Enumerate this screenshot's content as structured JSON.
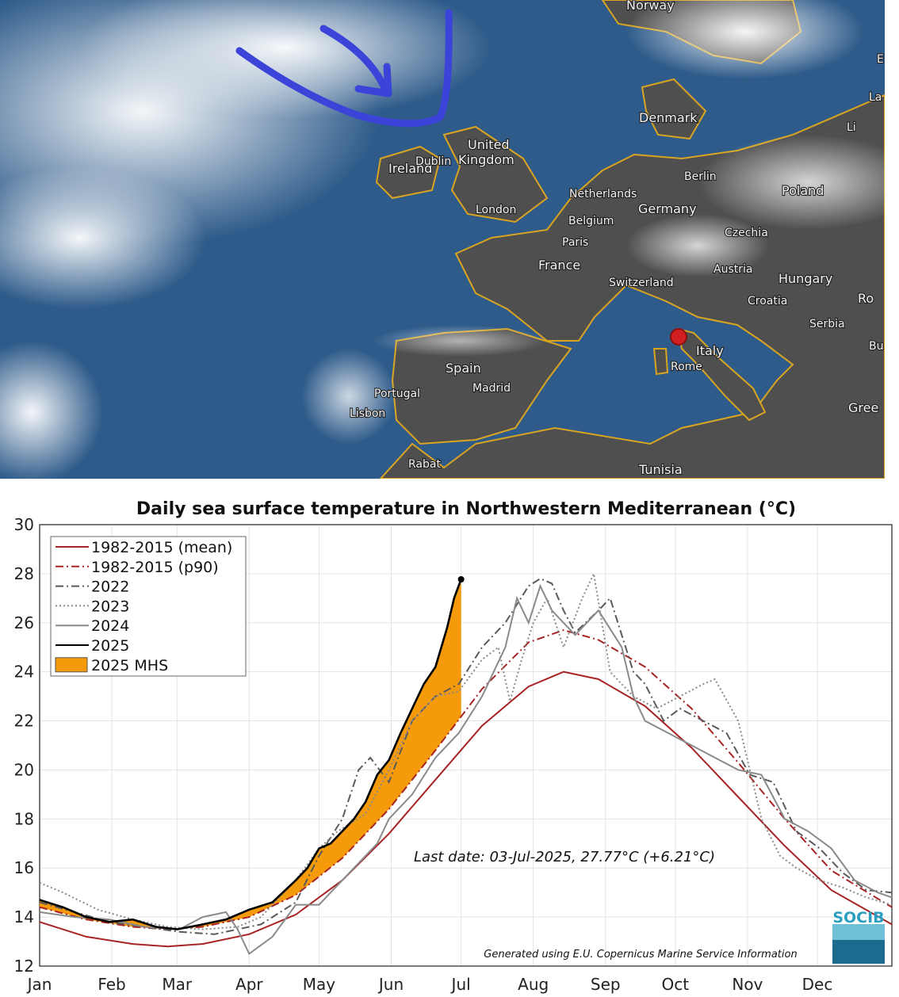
{
  "map": {
    "countries": [
      "Norway",
      "Denmark",
      "United Kingdom",
      "Ireland",
      "Netherlands",
      "Belgium",
      "Germany",
      "Poland",
      "Czechia",
      "France",
      "Switzerland",
      "Austria",
      "Hungary",
      "Croatia",
      "Serbia",
      "Italy",
      "Spain",
      "Portugal",
      "Tunisia",
      "Ro",
      "Bu",
      "Gree",
      "Li",
      "La",
      "E"
    ],
    "cities": [
      "Dublin",
      "London",
      "Paris",
      "Berlin",
      "Madrid",
      "Lisbon",
      "Rome",
      "Rabat"
    ],
    "colors": {
      "sea": "#2e5b8a",
      "land": "#4d4d4d",
      "borders": "#d9a521",
      "annotation_arrow": "#3c43d8",
      "marker": "#d11f1f"
    }
  },
  "chart_data": {
    "type": "line",
    "title": "Daily sea surface temperature in Northwestern Mediterranean (°C)",
    "xlabel": "",
    "ylabel": "",
    "ylim": [
      12,
      30
    ],
    "yticks": [
      12,
      14,
      16,
      18,
      20,
      22,
      24,
      26,
      28,
      30
    ],
    "xlim": [
      0,
      366
    ],
    "xticks": [
      {
        "label": "Jan",
        "day": 0
      },
      {
        "label": "Feb",
        "day": 31
      },
      {
        "label": "Mar",
        "day": 59
      },
      {
        "label": "Apr",
        "day": 90
      },
      {
        "label": "May",
        "day": 120
      },
      {
        "label": "Jun",
        "day": 151
      },
      {
        "label": "Jul",
        "day": 181
      },
      {
        "label": "Aug",
        "day": 212
      },
      {
        "label": "Sep",
        "day": 243
      },
      {
        "label": "Oct",
        "day": 273
      },
      {
        "label": "Nov",
        "day": 304
      },
      {
        "label": "Dec",
        "day": 334
      }
    ],
    "grid": true,
    "legend_position": "top-left",
    "series": [
      {
        "name": "1982-2015 (mean)",
        "color": "#a82323",
        "style": "solid",
        "x": [
          0,
          20,
          40,
          55,
          70,
          90,
          110,
          130,
          150,
          170,
          190,
          210,
          225,
          240,
          260,
          280,
          300,
          320,
          340,
          366
        ],
        "y": [
          13.8,
          13.2,
          12.9,
          12.8,
          12.9,
          13.3,
          14.1,
          15.5,
          17.4,
          19.6,
          21.8,
          23.4,
          24.0,
          23.7,
          22.6,
          20.9,
          18.9,
          16.9,
          15.1,
          13.7
        ]
      },
      {
        "name": "1982-2015 (p90)",
        "color": "#a82323",
        "style": "dashdot",
        "x": [
          0,
          20,
          40,
          55,
          70,
          90,
          110,
          130,
          150,
          170,
          190,
          210,
          225,
          240,
          260,
          280,
          300,
          320,
          340,
          366
        ],
        "y": [
          14.4,
          13.9,
          13.6,
          13.5,
          13.6,
          14.0,
          14.9,
          16.4,
          18.4,
          20.8,
          23.3,
          25.2,
          25.7,
          25.3,
          24.2,
          22.5,
          20.3,
          18.0,
          15.9,
          14.4
        ]
      },
      {
        "name": "2022",
        "color": "#5a5a5a",
        "style": "dashdot",
        "x": [
          0,
          15,
          30,
          45,
          60,
          75,
          85,
          95,
          110,
          120,
          130,
          137,
          142,
          150,
          160,
          170,
          180,
          190,
          200,
          210,
          215,
          220,
          225,
          230,
          240,
          245,
          250,
          255,
          260,
          268,
          275,
          285,
          295,
          305,
          315,
          325,
          335,
          345,
          355,
          366
        ],
        "y": [
          14.6,
          14.2,
          13.8,
          13.6,
          13.4,
          13.3,
          13.5,
          13.7,
          14.6,
          16.5,
          18.0,
          20.0,
          20.5,
          19.5,
          22.0,
          23.0,
          23.5,
          25.0,
          26.0,
          27.5,
          27.8,
          27.6,
          26.5,
          25.6,
          26.5,
          27.0,
          25.5,
          24.0,
          23.5,
          22.0,
          22.5,
          22.0,
          21.5,
          19.8,
          19.5,
          17.5,
          16.8,
          15.8,
          15.1,
          15.0
        ]
      },
      {
        "name": "2023",
        "color": "#8a8a8a",
        "style": "dotted",
        "x": [
          0,
          10,
          25,
          40,
          55,
          70,
          85,
          95,
          110,
          120,
          128,
          140,
          150,
          160,
          170,
          180,
          190,
          197,
          202,
          207,
          212,
          218,
          225,
          233,
          238,
          245,
          255,
          265,
          275,
          285,
          290,
          300,
          310,
          318,
          325,
          335,
          345,
          355,
          366
        ],
        "y": [
          15.4,
          15.0,
          14.3,
          13.9,
          13.6,
          13.5,
          13.6,
          14.0,
          15.5,
          16.8,
          17.5,
          18.2,
          20.0,
          22.0,
          23.0,
          23.2,
          24.5,
          25.0,
          22.8,
          24.5,
          26.0,
          27.0,
          25.0,
          27.0,
          28.0,
          24.0,
          23.0,
          22.5,
          23.0,
          23.5,
          23.7,
          22.0,
          18.0,
          16.5,
          16.0,
          15.5,
          15.2,
          14.8,
          14.5
        ]
      },
      {
        "name": "2024",
        "color": "#8a8a8a",
        "style": "solid",
        "x": [
          0,
          15,
          30,
          45,
          60,
          70,
          80,
          85,
          90,
          100,
          110,
          120,
          125,
          135,
          145,
          150,
          160,
          170,
          180,
          190,
          200,
          205,
          210,
          215,
          220,
          230,
          240,
          250,
          255,
          260,
          270,
          280,
          290,
          300,
          310,
          320,
          330,
          340,
          350,
          360,
          366
        ],
        "y": [
          14.2,
          14.0,
          13.9,
          13.6,
          13.5,
          14.0,
          14.2,
          13.5,
          12.5,
          13.2,
          14.5,
          14.5,
          15.0,
          16.0,
          17.0,
          18.0,
          19.0,
          20.5,
          21.5,
          23.0,
          25.0,
          27.0,
          26.0,
          27.5,
          26.5,
          25.5,
          26.5,
          25.0,
          23.0,
          22.0,
          21.5,
          21.0,
          20.5,
          20.0,
          19.8,
          18.0,
          17.5,
          16.8,
          15.5,
          15.0,
          14.8
        ]
      },
      {
        "name": "2025",
        "color": "#000000",
        "style": "solid",
        "x": [
          0,
          10,
          20,
          30,
          40,
          50,
          59,
          70,
          80,
          90,
          100,
          110,
          115,
          120,
          125,
          130,
          135,
          140,
          145,
          150,
          155,
          160,
          165,
          170,
          175,
          178,
          181
        ],
        "y": [
          14.7,
          14.4,
          14.0,
          13.8,
          13.9,
          13.6,
          13.5,
          13.7,
          13.9,
          14.3,
          14.6,
          15.5,
          16.0,
          16.8,
          17.0,
          17.5,
          18.0,
          18.7,
          19.8,
          20.4,
          21.5,
          22.5,
          23.5,
          24.2,
          25.8,
          27.0,
          27.77
        ]
      }
    ],
    "shaded_area": {
      "name": "2025 MHS",
      "color": "#f59a0a"
    },
    "legend": [
      "1982-2015 (mean)",
      "1982-2015 (p90)",
      "2022",
      "2023",
      "2024",
      "2025",
      "2025 MHS"
    ],
    "annotation": "Last date: 03-Jul-2025, 27.77°C (+6.21°C)",
    "credit": "Generated using E.U. Copernicus Marine Service Information",
    "logo_text": "SOCIB"
  }
}
